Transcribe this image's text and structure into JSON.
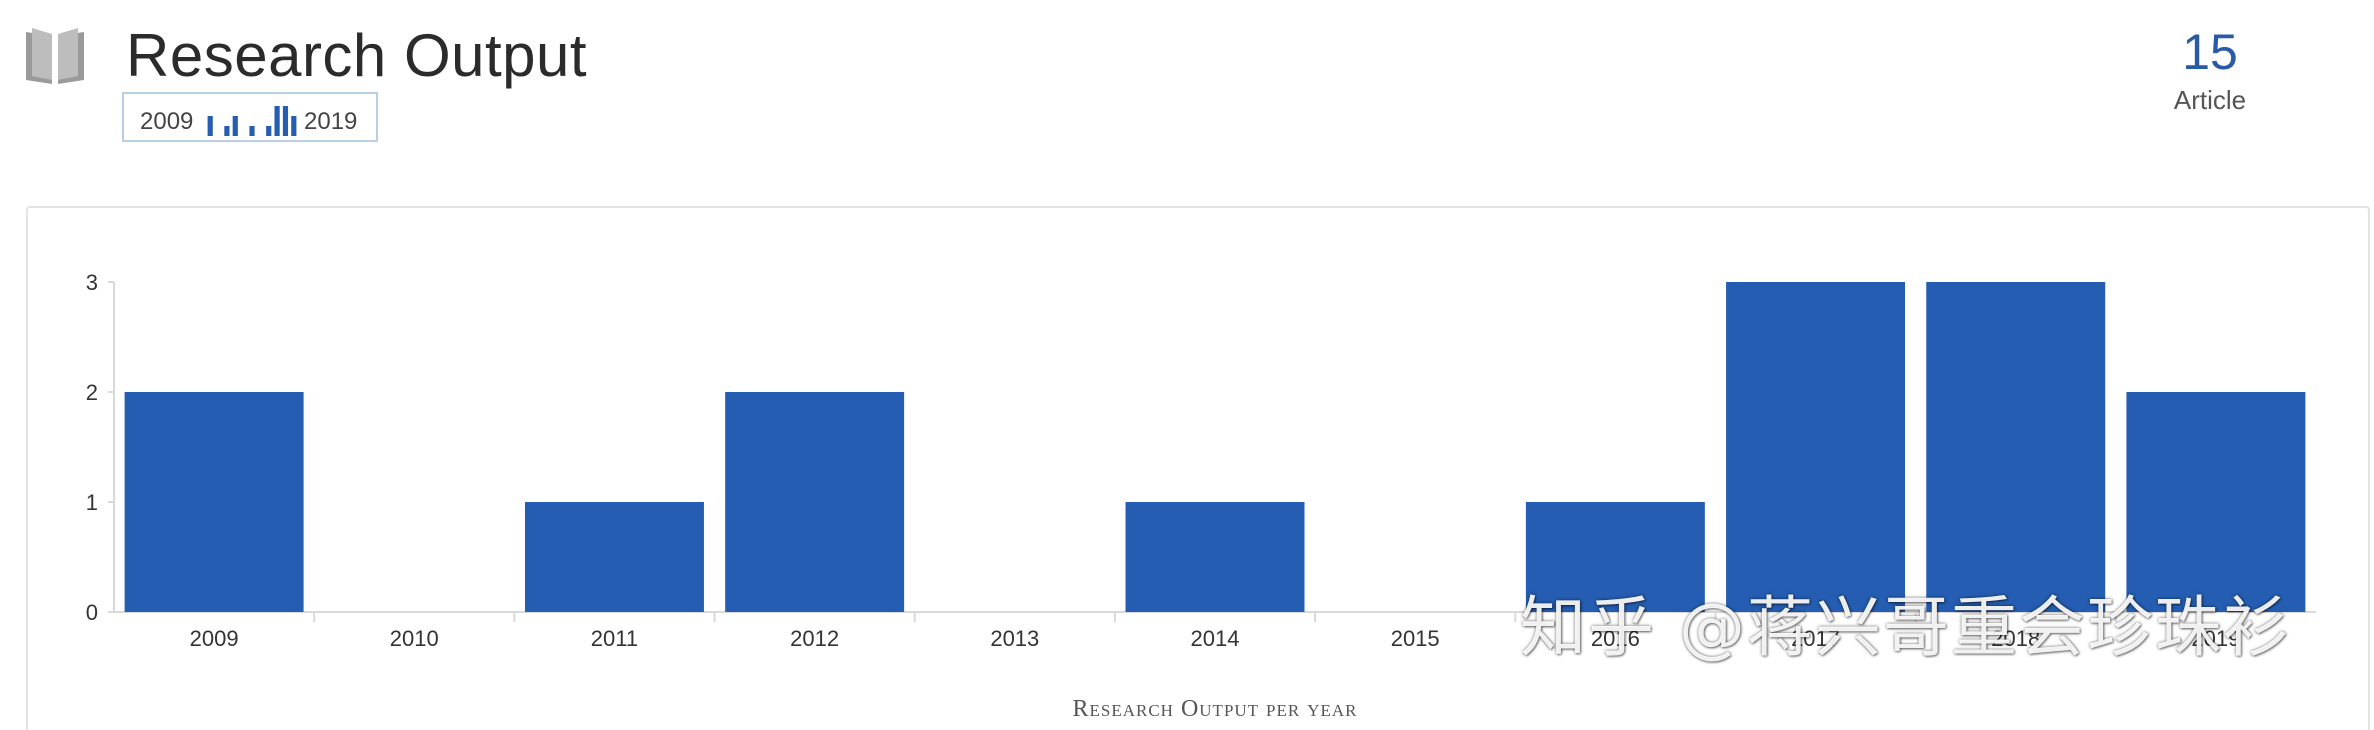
{
  "header": {
    "title": "Research Output",
    "sparkline": {
      "start_label": "2009",
      "end_label": "2019"
    },
    "count": {
      "value": "15",
      "label": "Article"
    }
  },
  "icons": {
    "header_icon": "book-icon"
  },
  "colors": {
    "bar": "#245db1",
    "count": "#2a5aa6",
    "axis": "#d9d9d9"
  },
  "watermark": "知乎 @蒋兴哥重会珍珠衫",
  "chart_data": {
    "type": "bar",
    "categories": [
      "2009",
      "2010",
      "2011",
      "2012",
      "2013",
      "2014",
      "2015",
      "2016",
      "2017",
      "2018",
      "2019"
    ],
    "values": [
      2,
      0,
      1,
      2,
      0,
      1,
      0,
      1,
      3,
      3,
      2
    ],
    "title": "",
    "xlabel": "Research Output per year",
    "ylabel": "",
    "ylim": [
      0,
      3
    ],
    "yticks": [
      0,
      1,
      2,
      3
    ],
    "grid": false,
    "legend": "none"
  }
}
